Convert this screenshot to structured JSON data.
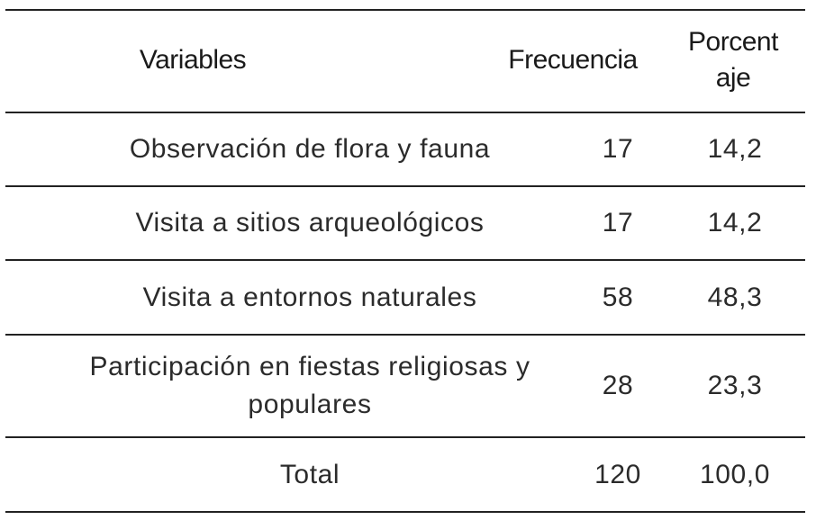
{
  "table": {
    "headers": {
      "variables": "Variables",
      "frequency": "Frecuencia",
      "percentage_line1": "Porcent",
      "percentage_line2": "aje"
    },
    "rows": [
      {
        "variable": "Observación de flora y fauna",
        "frequency": "17",
        "percentage": "14,2"
      },
      {
        "variable": "Visita a sitios arqueológicos",
        "frequency": "17",
        "percentage": "14,2"
      },
      {
        "variable": "Visita a entornos naturales",
        "frequency": "58",
        "percentage": "48,3"
      },
      {
        "variable_line1": "Participación en fiestas religiosas y",
        "variable_line2": "populares",
        "frequency": "28",
        "percentage": "23,3"
      }
    ],
    "total": {
      "label": "Total",
      "frequency": "120",
      "percentage": "100,0"
    }
  }
}
